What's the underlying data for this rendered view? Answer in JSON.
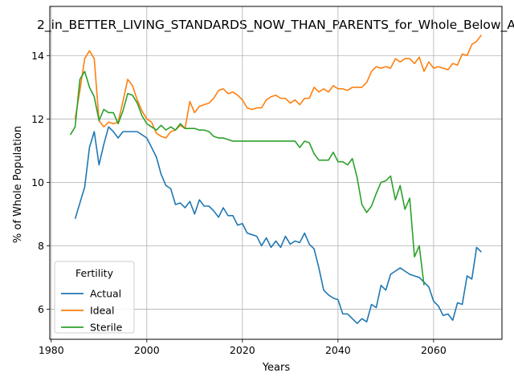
{
  "chart_data": {
    "type": "line",
    "title": "2_in_BETTER_LIVING_STANDARDS_NOW_THAN_PARENTS_for_Whole_Below_A",
    "xlabel": "Years",
    "ylabel": "% of Whole Population",
    "xlim": [
      1979.7,
      2074.3
    ],
    "ylim": [
      5.05,
      15.55
    ],
    "x_ticks": [
      1980,
      2000,
      2020,
      2040,
      2060
    ],
    "y_ticks": [
      6,
      8,
      10,
      12,
      14
    ],
    "grid": true,
    "legend": {
      "title": "Fertility",
      "placement": "bottom-left"
    },
    "x": [
      1984,
      1985,
      1986,
      1987,
      1988,
      1989,
      1990,
      1991,
      1992,
      1993,
      1994,
      1995,
      1996,
      1997,
      1998,
      1999,
      2000,
      2001,
      2002,
      2003,
      2004,
      2005,
      2006,
      2007,
      2008,
      2009,
      2010,
      2011,
      2012,
      2013,
      2014,
      2015,
      2016,
      2017,
      2018,
      2019,
      2020,
      2021,
      2022,
      2023,
      2024,
      2025,
      2026,
      2027,
      2028,
      2029,
      2030,
      2031,
      2032,
      2033,
      2034,
      2035,
      2036,
      2037,
      2038,
      2039,
      2040,
      2041,
      2042,
      2043,
      2044,
      2045,
      2046,
      2047,
      2048,
      2049,
      2050,
      2051,
      2052,
      2053,
      2054,
      2055,
      2056,
      2057,
      2058,
      2059,
      2060,
      2061,
      2062,
      2063,
      2064,
      2065,
      2066,
      2067,
      2068,
      2069,
      2070
    ],
    "series": [
      {
        "name": "Actual",
        "color": "#1f77b4",
        "values": [
          null,
          8.85,
          9.35,
          9.85,
          11.1,
          11.6,
          10.55,
          11.2,
          11.75,
          11.6,
          11.4,
          11.6,
          11.6,
          11.6,
          11.6,
          11.5,
          11.4,
          11.1,
          10.8,
          10.25,
          9.9,
          9.8,
          9.3,
          9.35,
          9.2,
          9.4,
          9.0,
          9.45,
          9.25,
          9.25,
          9.1,
          8.9,
          9.2,
          8.95,
          8.95,
          8.65,
          8.7,
          8.4,
          8.35,
          8.3,
          8.0,
          8.25,
          7.95,
          8.15,
          7.95,
          8.3,
          8.05,
          8.15,
          8.1,
          8.4,
          8.05,
          7.9,
          7.3,
          6.6,
          6.45,
          6.35,
          6.3,
          5.85,
          5.85,
          5.7,
          5.55,
          5.7,
          5.6,
          6.15,
          6.05,
          6.75,
          6.6,
          7.1,
          7.2,
          7.3,
          7.2,
          7.1,
          7.05,
          7.0,
          6.85,
          6.7,
          6.25,
          6.1,
          5.8,
          5.85,
          5.65,
          6.2,
          6.15,
          7.05,
          6.95,
          7.95,
          7.8
        ]
      },
      {
        "name": "Ideal",
        "color": "#ff7f0e",
        "values": [
          null,
          12.0,
          12.9,
          13.9,
          14.15,
          13.9,
          11.95,
          11.75,
          11.9,
          11.85,
          11.9,
          12.55,
          13.25,
          13.05,
          12.6,
          12.25,
          12.0,
          11.9,
          11.55,
          11.45,
          11.4,
          11.6,
          11.65,
          11.8,
          11.7,
          12.55,
          12.2,
          12.4,
          12.45,
          12.5,
          12.65,
          12.9,
          12.95,
          12.8,
          12.85,
          12.75,
          12.6,
          12.35,
          12.3,
          12.35,
          12.35,
          12.6,
          12.7,
          12.75,
          12.65,
          12.65,
          12.5,
          12.6,
          12.45,
          12.65,
          12.65,
          13.0,
          12.85,
          12.95,
          12.85,
          13.05,
          12.95,
          12.95,
          12.9,
          13.0,
          13.0,
          13.0,
          13.15,
          13.5,
          13.65,
          13.6,
          13.65,
          13.6,
          13.9,
          13.8,
          13.9,
          13.9,
          13.75,
          13.95,
          13.5,
          13.8,
          13.6,
          13.65,
          13.6,
          13.55,
          13.75,
          13.7,
          14.05,
          14.0,
          14.35,
          14.45,
          14.65
        ]
      },
      {
        "name": "Sterile",
        "color": "#2ca02c",
        "values": [
          11.5,
          11.75,
          13.25,
          13.5,
          13.0,
          12.7,
          11.95,
          12.3,
          12.2,
          12.2,
          11.85,
          12.25,
          12.8,
          12.75,
          12.5,
          12.1,
          11.85,
          11.75,
          11.65,
          11.8,
          11.65,
          11.75,
          11.65,
          11.85,
          11.7,
          11.7,
          11.7,
          11.65,
          11.65,
          11.6,
          11.45,
          11.4,
          11.4,
          11.35,
          11.3,
          11.3,
          11.3,
          11.3,
          11.3,
          11.3,
          11.3,
          11.3,
          11.3,
          11.3,
          11.3,
          11.3,
          11.3,
          11.3,
          11.1,
          11.3,
          11.25,
          10.9,
          10.7,
          10.7,
          10.7,
          10.95,
          10.65,
          10.65,
          10.55,
          10.75,
          10.15,
          9.3,
          9.05,
          9.25,
          9.65,
          10.0,
          10.05,
          10.2,
          9.45,
          9.9,
          9.15,
          9.5,
          7.65,
          8.0,
          6.75,
          null,
          null,
          null,
          null,
          null,
          null,
          null,
          null,
          null,
          null,
          null,
          null
        ]
      }
    ]
  }
}
